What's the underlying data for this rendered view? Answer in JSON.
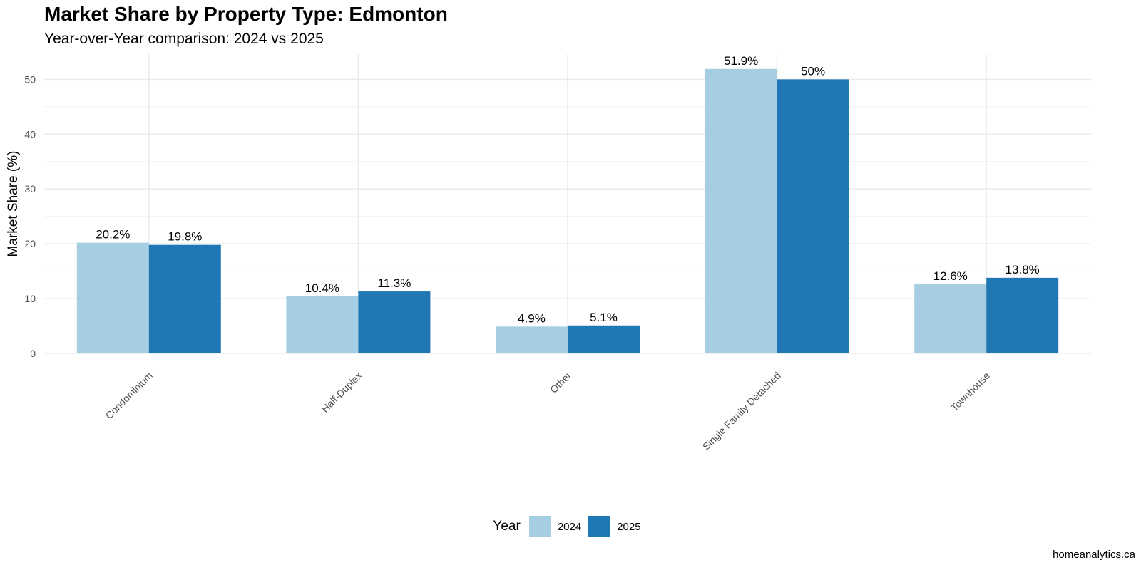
{
  "chart_data": {
    "type": "bar",
    "title": "Market Share by Property Type: Edmonton",
    "subtitle": "Year-over-Year comparison: 2024 vs 2025",
    "xlabel": "",
    "ylabel": "Market Share (%)",
    "ylim": [
      0,
      54.6
    ],
    "yticks": [
      0,
      10,
      20,
      30,
      40,
      50
    ],
    "grid": true,
    "legend_position": "bottom",
    "legend_title": "Year",
    "categories": [
      "Condominium",
      "Half-Duplex",
      "Other",
      "Single Family Detached",
      "Townhouse"
    ],
    "series": [
      {
        "name": "2024",
        "color": "#a6cee3",
        "values": [
          20.2,
          10.4,
          4.9,
          51.9,
          12.6
        ],
        "labels": [
          "20.2%",
          "10.4%",
          "4.9%",
          "51.9%",
          "12.6%"
        ]
      },
      {
        "name": "2025",
        "color": "#1f78b4",
        "values": [
          19.8,
          11.3,
          5.1,
          50,
          13.8
        ],
        "labels": [
          "19.8%",
          "11.3%",
          "5.1%",
          "50%",
          "13.8%"
        ]
      }
    ],
    "caption": "homeanalytics.ca"
  }
}
